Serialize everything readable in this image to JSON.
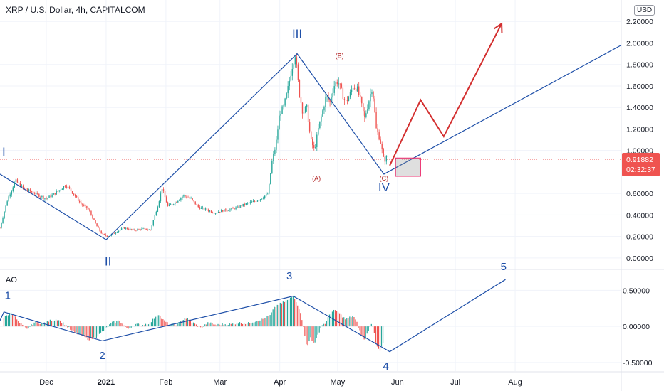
{
  "header": {
    "title": "XRP / U.S. Dollar, 4h, CAPITALCOM",
    "currency": "USD",
    "indicator": "AO"
  },
  "colors": {
    "up": "#26a69a",
    "down": "#ef5350",
    "wave_line": "#1e4fa8",
    "projection": "#d32f2f",
    "price_tag": "#ef5350"
  },
  "chart_data": [
    {
      "type": "candlestick",
      "title": "XRP / U.S. Dollar, 4h, CAPITALCOM",
      "ylim": [
        -0.1,
        2.4
      ],
      "y_ticks": [
        "2.20000",
        "2.00000",
        "1.80000",
        "1.60000",
        "1.40000",
        "1.20000",
        "1.00000",
        "0.60000",
        "0.40000",
        "0.20000",
        "0.00000"
      ],
      "x_ticks": [
        "Dec",
        "2021",
        "Feb",
        "Mar",
        "Apr",
        "May",
        "Jun",
        "Jul",
        "Aug"
      ],
      "x_tick_days": [
        0,
        31,
        62,
        90,
        121,
        151,
        182,
        212,
        243
      ],
      "xlim": [
        -24,
        298
      ],
      "last_price": "0.91882",
      "countdown": "02:32:37",
      "price_path": [
        [
          -24,
          0.28
        ],
        [
          -20,
          0.55
        ],
        [
          -16,
          0.72
        ],
        [
          -12,
          0.65
        ],
        [
          -6,
          0.6
        ],
        [
          0,
          0.55
        ],
        [
          6,
          0.62
        ],
        [
          10,
          0.68
        ],
        [
          14,
          0.6
        ],
        [
          18,
          0.5
        ],
        [
          22,
          0.45
        ],
        [
          26,
          0.3
        ],
        [
          29,
          0.22
        ],
        [
          32,
          0.2
        ],
        [
          36,
          0.24
        ],
        [
          40,
          0.28
        ],
        [
          45,
          0.26
        ],
        [
          50,
          0.27
        ],
        [
          54,
          0.26
        ],
        [
          58,
          0.5
        ],
        [
          60,
          0.65
        ],
        [
          63,
          0.48
        ],
        [
          67,
          0.52
        ],
        [
          71,
          0.58
        ],
        [
          75,
          0.55
        ],
        [
          79,
          0.47
        ],
        [
          83,
          0.45
        ],
        [
          87,
          0.42
        ],
        [
          91,
          0.44
        ],
        [
          95,
          0.45
        ],
        [
          99,
          0.47
        ],
        [
          103,
          0.5
        ],
        [
          107,
          0.52
        ],
        [
          111,
          0.55
        ],
        [
          115,
          0.6
        ],
        [
          117,
          0.9
        ],
        [
          119,
          1.05
        ],
        [
          121,
          1.35
        ],
        [
          123,
          1.4
        ],
        [
          125,
          1.55
        ],
        [
          127,
          1.75
        ],
        [
          129,
          1.9
        ],
        [
          131,
          1.55
        ],
        [
          133,
          1.35
        ],
        [
          135,
          1.4
        ],
        [
          137,
          1.1
        ],
        [
          139,
          1.0
        ],
        [
          141,
          1.2
        ],
        [
          143,
          1.35
        ],
        [
          145,
          1.5
        ],
        [
          147,
          1.45
        ],
        [
          149,
          1.6
        ],
        [
          151,
          1.65
        ],
        [
          153,
          1.55
        ],
        [
          155,
          1.45
        ],
        [
          157,
          1.5
        ],
        [
          159,
          1.6
        ],
        [
          161,
          1.58
        ],
        [
          163,
          1.45
        ],
        [
          165,
          1.3
        ],
        [
          167,
          1.45
        ],
        [
          169,
          1.6
        ],
        [
          171,
          1.2
        ],
        [
          173,
          1.1
        ],
        [
          175,
          0.9
        ],
        [
          177,
          0.95
        ]
      ],
      "wave_labels": [
        {
          "label": "I",
          "x": -22,
          "y": 0.95
        },
        {
          "label": "II",
          "x": 32,
          "y": -0.07
        },
        {
          "label": "III",
          "x": 130,
          "y": 2.05
        },
        {
          "label": "IV",
          "x": 175,
          "y": 0.62
        }
      ],
      "sub_labels": [
        {
          "label": "(B)",
          "x": 152,
          "y": 1.86
        },
        {
          "label": "(A)",
          "x": 140,
          "y": 0.72
        },
        {
          "label": "(C)",
          "x": 175,
          "y": 0.72
        }
      ],
      "wave_line": [
        [
          -24,
          0.78
        ],
        [
          31,
          0.17
        ],
        [
          130,
          1.9
        ],
        [
          175,
          0.78
        ],
        [
          298,
          1.98
        ]
      ],
      "projection": [
        [
          178,
          0.86
        ],
        [
          194,
          1.47
        ],
        [
          206,
          1.13
        ],
        [
          236,
          2.18
        ]
      ],
      "box": {
        "x0": 181,
        "x1": 194,
        "y0": 0.76,
        "y1": 0.93
      }
    },
    {
      "type": "bar",
      "title": "AO",
      "ylim": [
        -0.62,
        0.78
      ],
      "y_ticks": [
        "0.50000",
        "0.00000",
        "-0.50000"
      ],
      "ao_points": [
        [
          -22,
          0.12
        ],
        [
          -18,
          0.2
        ],
        [
          -14,
          0.05
        ],
        [
          -10,
          -0.04
        ],
        [
          -6,
          0.06
        ],
        [
          -2,
          0.04
        ],
        [
          2,
          0.08
        ],
        [
          6,
          0.1
        ],
        [
          10,
          0.02
        ],
        [
          14,
          -0.08
        ],
        [
          18,
          -0.12
        ],
        [
          22,
          -0.18
        ],
        [
          26,
          -0.15
        ],
        [
          30,
          -0.05
        ],
        [
          34,
          0.05
        ],
        [
          38,
          0.08
        ],
        [
          42,
          -0.04
        ],
        [
          46,
          0.03
        ],
        [
          50,
          0.02
        ],
        [
          54,
          0.05
        ],
        [
          58,
          0.18
        ],
        [
          60,
          0.1
        ],
        [
          64,
          0.02
        ],
        [
          68,
          0.03
        ],
        [
          72,
          0.12
        ],
        [
          76,
          0.05
        ],
        [
          80,
          -0.02
        ],
        [
          84,
          0.05
        ],
        [
          88,
          0.02
        ],
        [
          92,
          0.03
        ],
        [
          96,
          0.03
        ],
        [
          100,
          0.05
        ],
        [
          104,
          0.04
        ],
        [
          108,
          0.07
        ],
        [
          112,
          0.1
        ],
        [
          116,
          0.15
        ],
        [
          118,
          0.25
        ],
        [
          120,
          0.3
        ],
        [
          122,
          0.32
        ],
        [
          124,
          0.35
        ],
        [
          126,
          0.38
        ],
        [
          128,
          0.42
        ],
        [
          129,
          0.38
        ],
        [
          131,
          0.25
        ],
        [
          133,
          0.05
        ],
        [
          135,
          -0.3
        ],
        [
          137,
          -0.15
        ],
        [
          139,
          -0.25
        ],
        [
          141,
          -0.1
        ],
        [
          143,
          0.02
        ],
        [
          145,
          0.05
        ],
        [
          147,
          0.18
        ],
        [
          149,
          0.22
        ],
        [
          151,
          0.2
        ],
        [
          153,
          0.15
        ],
        [
          155,
          0.1
        ],
        [
          157,
          0.12
        ],
        [
          159,
          0.15
        ],
        [
          161,
          0.05
        ],
        [
          163,
          -0.1
        ],
        [
          165,
          -0.2
        ],
        [
          167,
          -0.05
        ],
        [
          169,
          0.05
        ],
        [
          171,
          -0.25
        ],
        [
          173,
          -0.33
        ],
        [
          175,
          -0.2
        ]
      ],
      "wave_labels": [
        {
          "label": "1",
          "x": -20,
          "y": 0.38
        },
        {
          "label": "2",
          "x": 29,
          "y": -0.45
        },
        {
          "label": "3",
          "x": 126,
          "y": 0.65
        },
        {
          "label": "4",
          "x": 176,
          "y": -0.6
        },
        {
          "label": "5",
          "x": 237,
          "y": 0.78
        }
      ],
      "wave_line": [
        [
          -24,
          0.08
        ],
        [
          -22,
          0.2
        ],
        [
          29,
          -0.2
        ],
        [
          128,
          0.42
        ],
        [
          178,
          -0.35
        ],
        [
          238,
          0.65
        ]
      ]
    }
  ]
}
